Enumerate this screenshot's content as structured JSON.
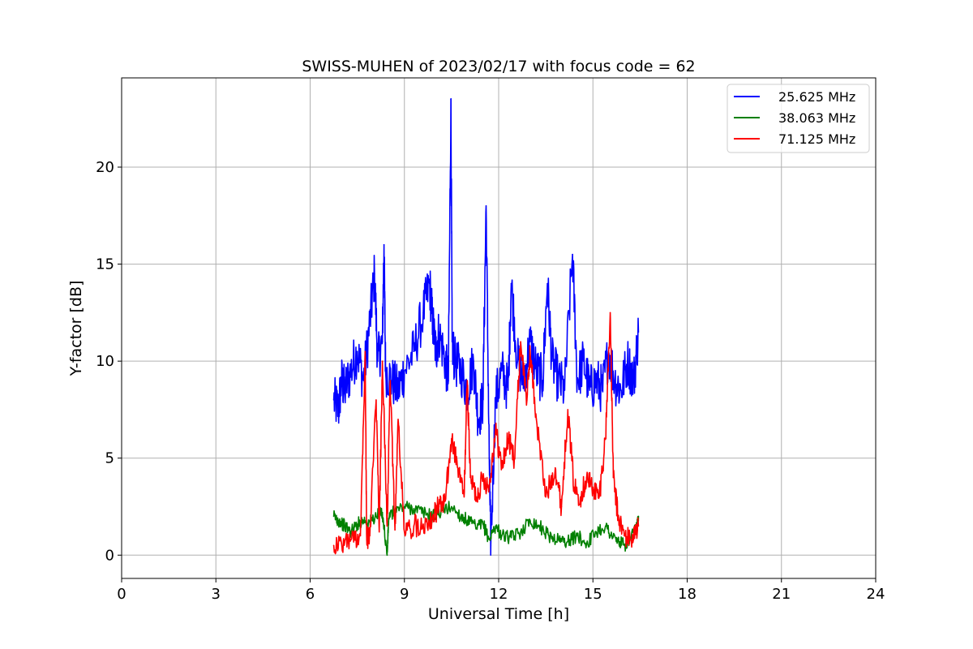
{
  "chart_data": {
    "type": "line",
    "title": "SWISS-MUHEN of 2023/02/17 with focus code = 62",
    "xlabel": "Universal Time [h]",
    "ylabel": "Y-factor [dB]",
    "xlim": [
      0,
      24
    ],
    "ylim": [
      -1.2,
      24.6
    ],
    "xticks": [
      0,
      3,
      6,
      9,
      12,
      15,
      18,
      21,
      24
    ],
    "yticks": [
      0,
      5,
      10,
      15,
      20
    ],
    "grid": true,
    "legend_position": "top-right",
    "series": [
      {
        "name": "25.625 MHz",
        "color": "#0000ff",
        "x": [
          6.75,
          6.9,
          7.0,
          7.1,
          7.3,
          7.5,
          7.7,
          7.9,
          8.05,
          8.15,
          8.3,
          8.35,
          8.4,
          8.6,
          8.8,
          9.0,
          9.3,
          9.6,
          9.8,
          9.9,
          10.0,
          10.1,
          10.3,
          10.4,
          10.48,
          10.52,
          10.6,
          10.8,
          11.0,
          11.2,
          11.35,
          11.5,
          11.6,
          11.7,
          11.75,
          11.9,
          12.1,
          12.3,
          12.4,
          12.6,
          12.8,
          13.0,
          13.2,
          13.4,
          13.55,
          13.7,
          13.9,
          14.1,
          14.35,
          14.5,
          14.7,
          14.9,
          15.1,
          15.3,
          15.5,
          15.7,
          15.9,
          16.1,
          16.3,
          16.45
        ],
        "y": [
          8.0,
          7.5,
          9.0,
          8.5,
          9.5,
          10.5,
          9.0,
          12.0,
          14.5,
          10.0,
          11.0,
          16.0,
          9.5,
          9.0,
          8.5,
          9.5,
          10.5,
          12.5,
          14.0,
          12.0,
          10.5,
          11.5,
          10.0,
          9.0,
          23.5,
          11.0,
          10.0,
          9.5,
          8.5,
          10.0,
          7.0,
          8.0,
          18.0,
          5.0,
          0.5,
          8.0,
          9.5,
          8.5,
          14.0,
          10.0,
          9.0,
          11.0,
          9.5,
          9.0,
          14.0,
          10.0,
          9.0,
          8.5,
          15.5,
          9.0,
          10.0,
          8.5,
          9.0,
          8.5,
          10.5,
          9.0,
          8.5,
          10.0,
          9.0,
          11.5
        ]
      },
      {
        "name": "38.063 MHz",
        "color": "#008000",
        "x": [
          6.75,
          6.9,
          7.1,
          7.3,
          7.5,
          7.7,
          7.9,
          8.1,
          8.3,
          8.45,
          8.5,
          8.7,
          9.0,
          9.3,
          9.6,
          9.9,
          10.2,
          10.5,
          10.8,
          11.0,
          11.3,
          11.5,
          11.7,
          11.9,
          12.1,
          12.4,
          12.7,
          13.0,
          13.3,
          13.6,
          13.9,
          14.2,
          14.5,
          14.8,
          15.1,
          15.4,
          15.6,
          15.8,
          16.0,
          16.2,
          16.4,
          16.45
        ],
        "y": [
          2.0,
          1.8,
          1.5,
          1.2,
          1.6,
          1.8,
          1.7,
          2.0,
          2.2,
          0.0,
          1.9,
          2.3,
          2.5,
          2.4,
          2.2,
          2.0,
          2.3,
          2.5,
          2.0,
          1.8,
          1.4,
          1.6,
          0.8,
          1.5,
          1.0,
          0.9,
          1.2,
          1.8,
          1.5,
          1.0,
          0.8,
          0.7,
          1.0,
          0.6,
          1.2,
          1.5,
          1.0,
          0.7,
          0.5,
          0.8,
          1.5,
          2.0
        ]
      },
      {
        "name": "71.125 MHz",
        "color": "#ff0000",
        "x": [
          6.75,
          7.0,
          7.3,
          7.6,
          7.75,
          7.8,
          7.9,
          8.1,
          8.2,
          8.3,
          8.45,
          8.55,
          8.7,
          8.8,
          9.0,
          9.3,
          9.6,
          9.9,
          10.1,
          10.3,
          10.5,
          10.7,
          10.9,
          11.0,
          11.1,
          11.3,
          11.5,
          11.7,
          11.9,
          12.1,
          12.3,
          12.5,
          12.7,
          12.9,
          13.0,
          13.2,
          13.5,
          13.8,
          14.0,
          14.2,
          14.4,
          14.6,
          14.8,
          15.0,
          15.2,
          15.4,
          15.55,
          15.65,
          15.8,
          16.0,
          16.2,
          16.45
        ],
        "y": [
          0.5,
          0.6,
          0.8,
          1.0,
          10.5,
          0.8,
          1.0,
          8.0,
          1.2,
          10.0,
          1.5,
          9.0,
          1.3,
          7.0,
          1.2,
          1.5,
          1.6,
          2.0,
          2.5,
          2.8,
          6.0,
          4.5,
          3.0,
          9.0,
          4.0,
          3.0,
          4.0,
          3.5,
          6.5,
          4.5,
          6.0,
          5.0,
          11.0,
          8.0,
          10.5,
          7.0,
          3.0,
          4.5,
          2.5,
          7.5,
          3.5,
          3.0,
          4.0,
          3.5,
          3.0,
          6.0,
          12.5,
          4.0,
          2.0,
          1.0,
          0.8,
          1.5
        ]
      }
    ]
  }
}
